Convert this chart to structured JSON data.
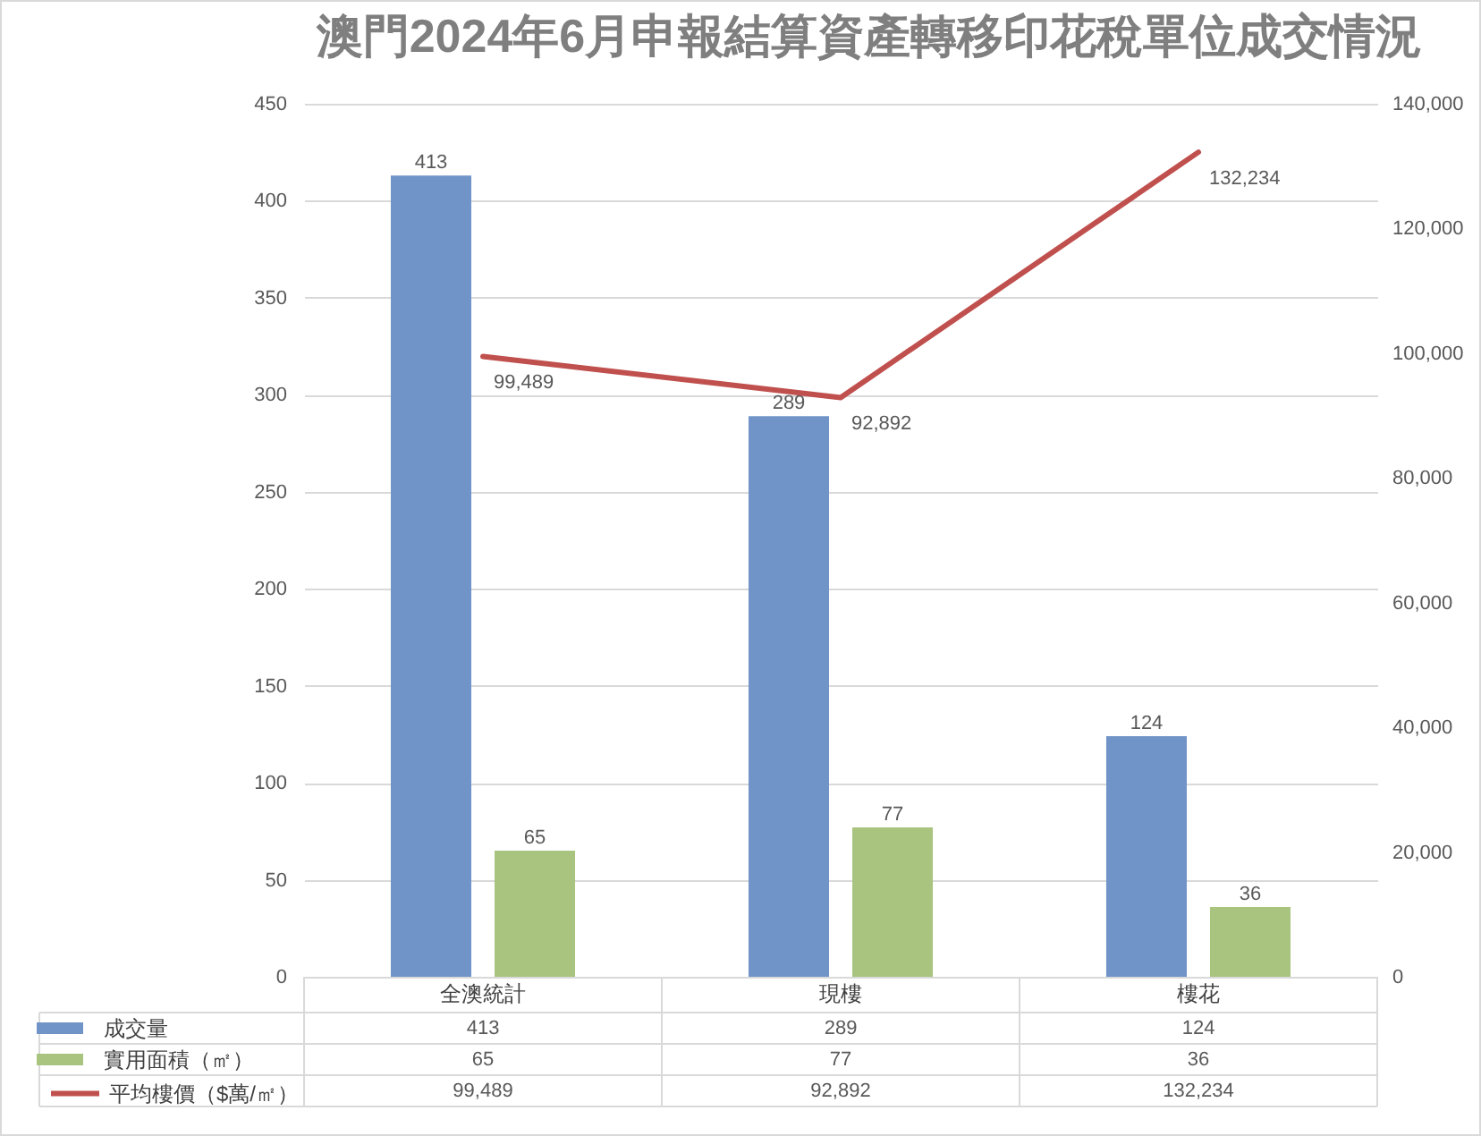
{
  "chart_data": {
    "type": "bar",
    "title": "澳門2024年6月申報結算資產轉移印花稅單位成交情況",
    "categories": [
      "全澳統計",
      "現樓",
      "樓花"
    ],
    "series": [
      {
        "name": "成交量",
        "color": "#7094c8",
        "values": [
          413,
          289,
          124
        ],
        "value_labels": [
          "413",
          "289",
          "124"
        ]
      },
      {
        "name": "實用面積（㎡）",
        "color": "#a9c47f",
        "values": [
          65,
          77,
          36
        ],
        "value_labels": [
          "65",
          "77",
          "36"
        ]
      },
      {
        "name": "平均樓價（$萬/㎡）",
        "type": "line",
        "axis": "y2",
        "color": "#c0504d",
        "values": [
          99489,
          92892,
          132234
        ],
        "value_labels": [
          "99,489",
          "92,892",
          "132,234"
        ]
      }
    ],
    "ylim": [
      0,
      450
    ],
    "yticks": [
      0,
      50,
      100,
      150,
      200,
      250,
      300,
      350,
      400,
      450
    ],
    "y2lim": [
      0,
      140000
    ],
    "y2ticks": [
      0,
      {
        "value": 20000,
        "label": "20,000"
      },
      {
        "value": 40000,
        "label": "40,000"
      },
      {
        "value": 60000,
        "label": "60,000"
      },
      {
        "value": 80000,
        "label": "80,000"
      },
      {
        "value": 100000,
        "label": "100,000"
      },
      {
        "value": 120000,
        "label": "120,000"
      },
      {
        "value": 140000,
        "label": "140,000"
      }
    ],
    "grid": "y",
    "legend": "bottom"
  }
}
